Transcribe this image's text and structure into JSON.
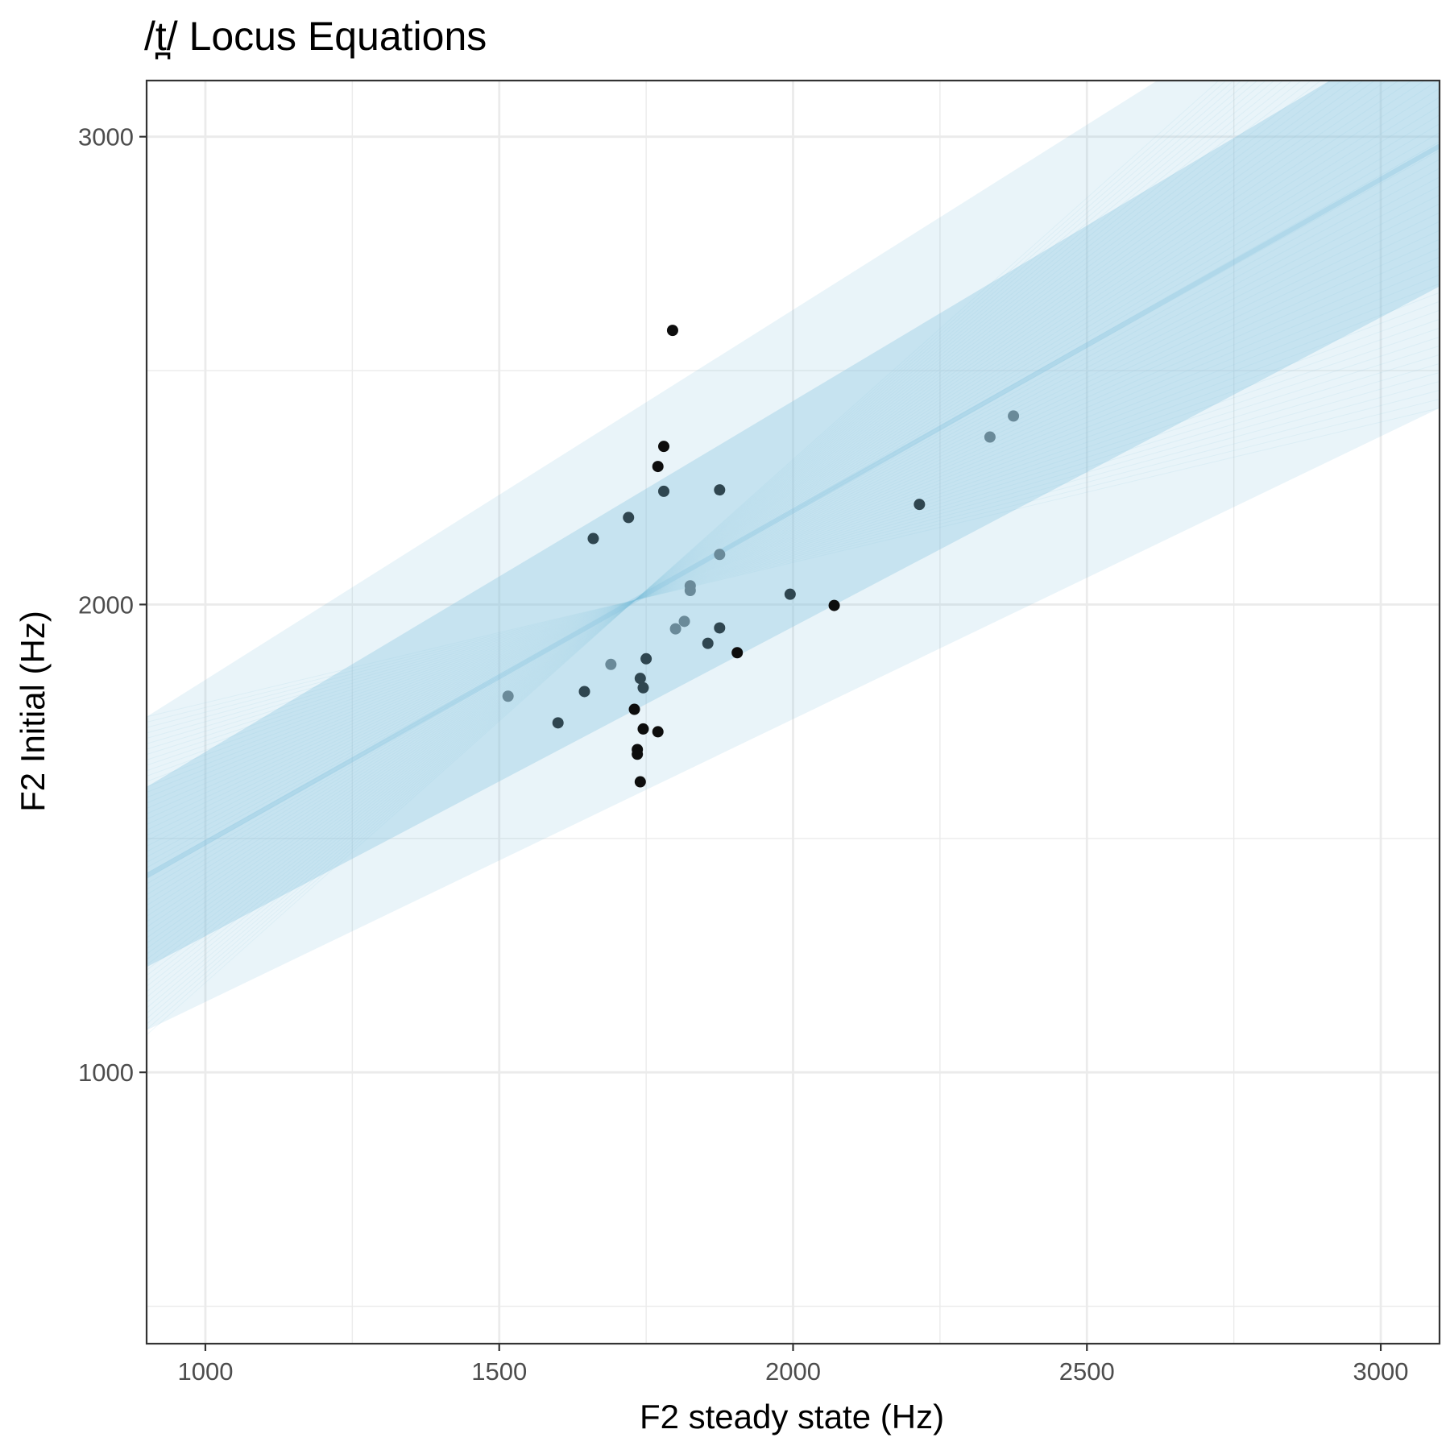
{
  "chart_data": {
    "type": "scatter",
    "title": "/t̪/ Locus Equations",
    "xlabel": "F2 steady state (Hz)",
    "ylabel": "F2 Initial (Hz)",
    "xlim": [
      900,
      3100
    ],
    "ylim": [
      420,
      3120
    ],
    "x_ticks": [
      1000,
      1500,
      2000,
      2500,
      3000
    ],
    "x_tick_labels": [
      "1000",
      "1500",
      "2000",
      "2500",
      "3000"
    ],
    "y_ticks": [
      1000,
      2000,
      3000
    ],
    "y_tick_labels": [
      "1000",
      "2000",
      "3000"
    ],
    "x_minor_gridlines": [
      1250,
      1750,
      2250,
      2750
    ],
    "y_minor_gridlines": [
      500,
      1500,
      2500
    ],
    "grid": true,
    "legend": "none",
    "regression_band": {
      "description_color": "#87c3e0",
      "mean_line": {
        "x": [
          900,
          3100
        ],
        "y": [
          1420,
          2980
        ]
      },
      "inner_band": {
        "lower": [
          1225,
          2680
        ],
        "upper": [
          1610,
          3260
        ]
      },
      "outer_band": {
        "lower": [
          1090,
          2420
        ],
        "upper": [
          1760,
          3500
        ]
      }
    },
    "points": [
      {
        "x": 1795,
        "y": 2586
      },
      {
        "x": 1780,
        "y": 2338
      },
      {
        "x": 1770,
        "y": 2295
      },
      {
        "x": 1780,
        "y": 2242
      },
      {
        "x": 1875,
        "y": 2245
      },
      {
        "x": 1720,
        "y": 2186
      },
      {
        "x": 1660,
        "y": 2141
      },
      {
        "x": 2215,
        "y": 2214
      },
      {
        "x": 2335,
        "y": 2358
      },
      {
        "x": 2375,
        "y": 2403
      },
      {
        "x": 1875,
        "y": 2107
      },
      {
        "x": 1825,
        "y": 2040
      },
      {
        "x": 1825,
        "y": 2030
      },
      {
        "x": 1995,
        "y": 2022
      },
      {
        "x": 2070,
        "y": 1998
      },
      {
        "x": 1815,
        "y": 1964
      },
      {
        "x": 1800,
        "y": 1948
      },
      {
        "x": 1875,
        "y": 1950
      },
      {
        "x": 1855,
        "y": 1917
      },
      {
        "x": 1905,
        "y": 1897
      },
      {
        "x": 1750,
        "y": 1884
      },
      {
        "x": 1690,
        "y": 1872
      },
      {
        "x": 1740,
        "y": 1842
      },
      {
        "x": 1745,
        "y": 1822
      },
      {
        "x": 1645,
        "y": 1814
      },
      {
        "x": 1515,
        "y": 1804
      },
      {
        "x": 1730,
        "y": 1776
      },
      {
        "x": 1600,
        "y": 1747
      },
      {
        "x": 1745,
        "y": 1734
      },
      {
        "x": 1770,
        "y": 1728
      },
      {
        "x": 1735,
        "y": 1690
      },
      {
        "x": 1735,
        "y": 1680
      },
      {
        "x": 1740,
        "y": 1621
      }
    ]
  }
}
